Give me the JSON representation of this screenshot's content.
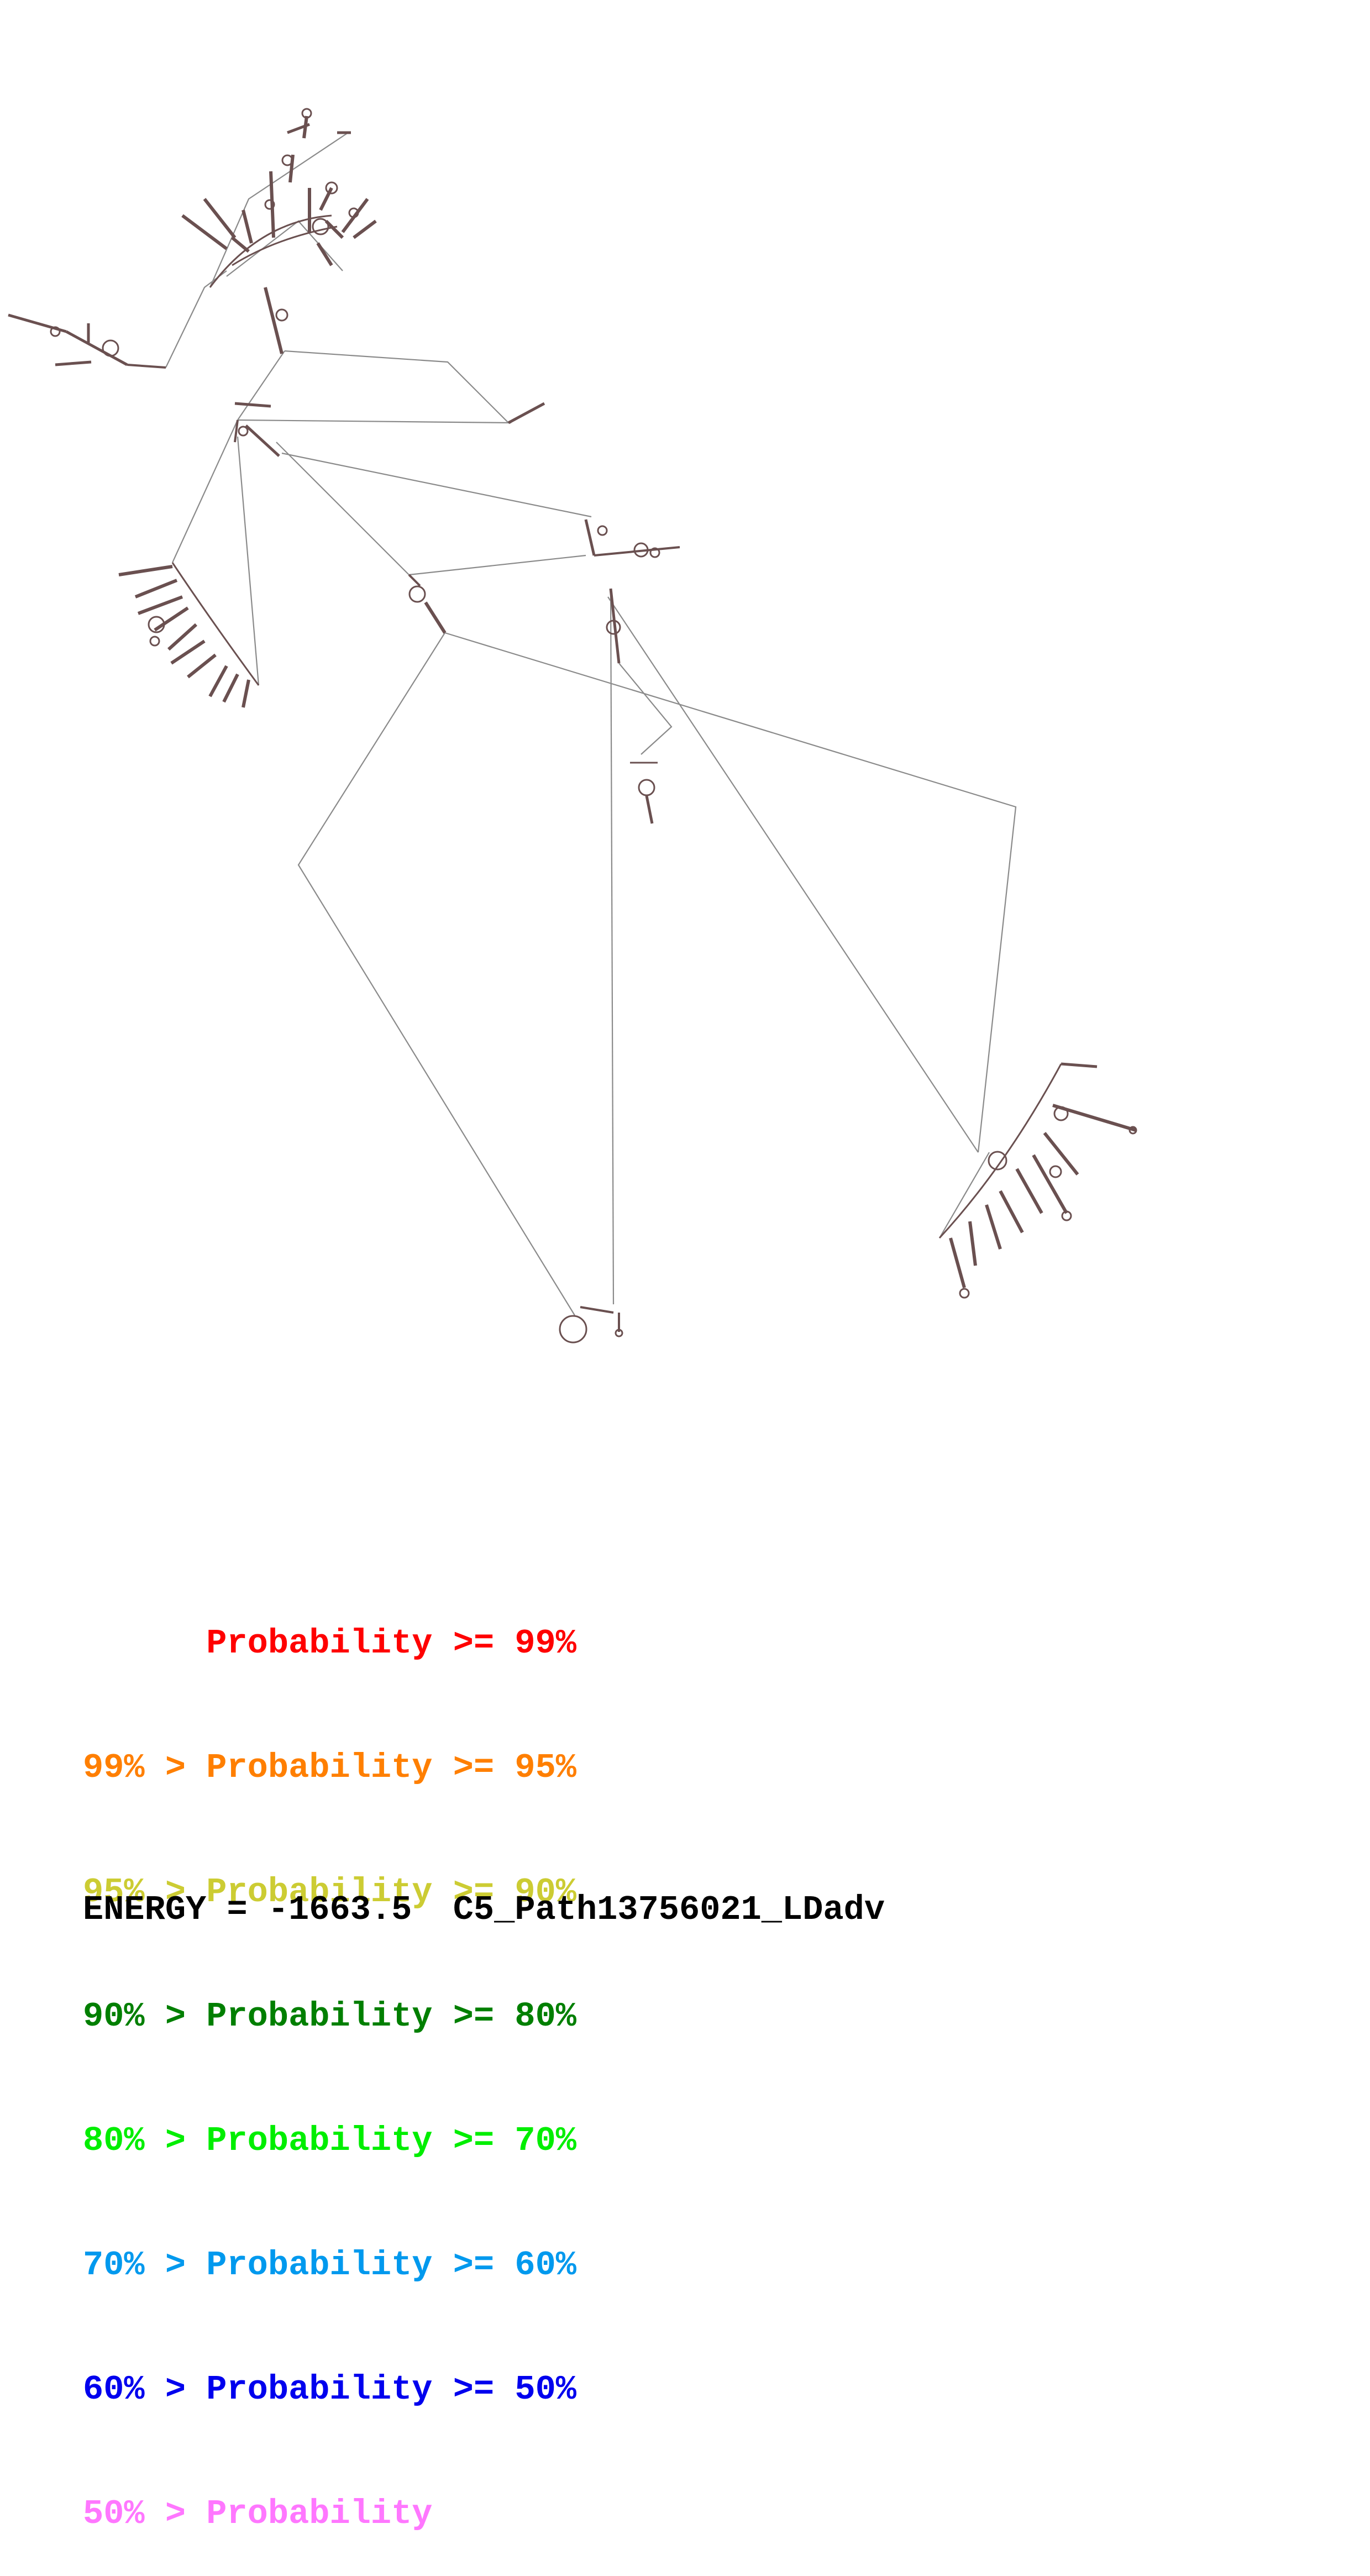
{
  "legend": {
    "rows": [
      {
        "prefix": "",
        "label": "Probability",
        "suffix": ">= 99%",
        "color": "#ff0000"
      },
      {
        "prefix": "99% >",
        "label": "Probability",
        "suffix": ">= 95%",
        "color": "#ff7f00"
      },
      {
        "prefix": "95% >",
        "label": "Probability",
        "suffix": ">= 90%",
        "color": "#cccc33"
      },
      {
        "prefix": "90% >",
        "label": "Probability",
        "suffix": ">= 80%",
        "color": "#007f00"
      },
      {
        "prefix": "80% >",
        "label": "Probability",
        "suffix": ">= 70%",
        "color": "#00ee00"
      },
      {
        "prefix": "70% >",
        "label": "Probability",
        "suffix": ">= 60%",
        "color": "#0099ee"
      },
      {
        "prefix": "60% >",
        "label": "Probability",
        "suffix": ">= 50%",
        "color": "#0000ee"
      },
      {
        "prefix": "50% >",
        "label": "Probability",
        "suffix": "",
        "color": "#ff77ff"
      }
    ]
  },
  "footer": {
    "energy": "ENERGY = -1663.5",
    "name": "C5_Path13756021_LDadv"
  },
  "colors": {
    "backbone": "#808080",
    "pairs": "#705858"
  }
}
